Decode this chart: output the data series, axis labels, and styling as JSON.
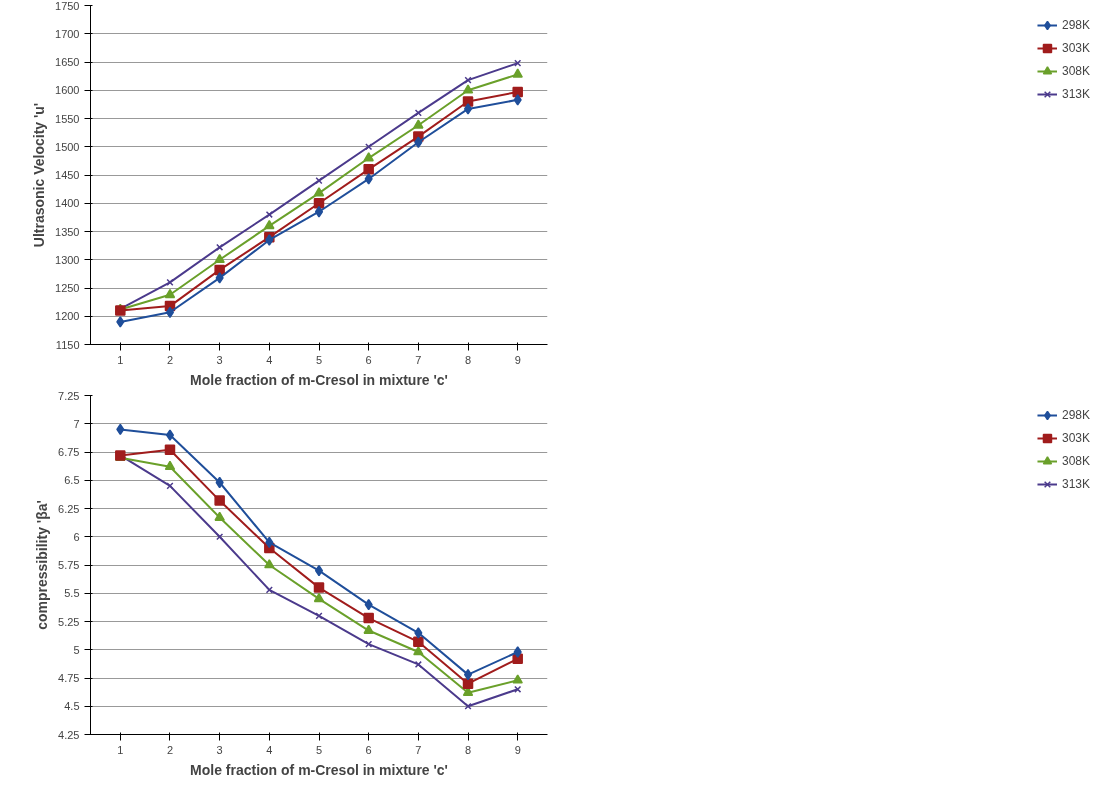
{
  "chart_data": [
    {
      "type": "line",
      "xlabel": "Mole fraction of m-Cresol in mixture 'c'",
      "ylabel": "Ultrasonic Velocity 'u'",
      "categories": [
        "1",
        "2",
        "3",
        "4",
        "5",
        "6",
        "7",
        "8",
        "9"
      ],
      "ylim": [
        1150,
        1750
      ],
      "yticks": [
        1150,
        1200,
        1250,
        1300,
        1350,
        1400,
        1450,
        1500,
        1550,
        1600,
        1650,
        1700,
        1750
      ],
      "grid": "y",
      "legend": "right",
      "series": [
        {
          "name": "298K",
          "color": "#1f4e9a",
          "marker": "diamond",
          "values": [
            1190,
            1207,
            1268,
            1335,
            1385,
            1443,
            1508,
            1567,
            1583
          ]
        },
        {
          "name": "303K",
          "color": "#a01c1c",
          "marker": "square",
          "values": [
            1210,
            1218,
            1282,
            1340,
            1400,
            1460,
            1518,
            1580,
            1597
          ]
        },
        {
          "name": "308K",
          "color": "#6aa02a",
          "marker": "triangle",
          "values": [
            1212,
            1238,
            1300,
            1360,
            1418,
            1480,
            1538,
            1600,
            1628
          ]
        },
        {
          "name": "313K",
          "color": "#4b3a8c",
          "marker": "cross",
          "values": [
            1213,
            1260,
            1322,
            1380,
            1440,
            1500,
            1560,
            1618,
            1648
          ]
        }
      ]
    },
    {
      "type": "line",
      "xlabel": "Mole fraction of m-Cresol in mixture 'c'",
      "ylabel": "compressibility 'βa'",
      "categories": [
        "1",
        "2",
        "3",
        "4",
        "5",
        "6",
        "7",
        "8",
        "9"
      ],
      "ylim": [
        4.25,
        7.25
      ],
      "yticks": [
        4.25,
        4.5,
        4.75,
        5,
        5.25,
        5.5,
        5.75,
        6,
        6.25,
        6.5,
        6.75,
        7,
        7.25
      ],
      "grid": "y",
      "legend": "right",
      "series": [
        {
          "name": "298K",
          "color": "#1f4e9a",
          "marker": "diamond",
          "values": [
            6.95,
            6.9,
            6.48,
            5.95,
            5.7,
            5.4,
            5.15,
            4.78,
            4.98
          ]
        },
        {
          "name": "303K",
          "color": "#a01c1c",
          "marker": "square",
          "values": [
            6.72,
            6.77,
            6.32,
            5.9,
            5.55,
            5.28,
            5.07,
            4.7,
            4.92
          ]
        },
        {
          "name": "308K",
          "color": "#6aa02a",
          "marker": "triangle",
          "values": [
            6.7,
            6.62,
            6.17,
            5.75,
            5.45,
            5.17,
            4.98,
            4.62,
            4.73
          ]
        },
        {
          "name": "313K",
          "color": "#4b3a8c",
          "marker": "cross",
          "values": [
            6.72,
            6.45,
            6.0,
            5.53,
            5.3,
            5.05,
            4.87,
            4.5,
            4.65
          ]
        }
      ]
    }
  ]
}
